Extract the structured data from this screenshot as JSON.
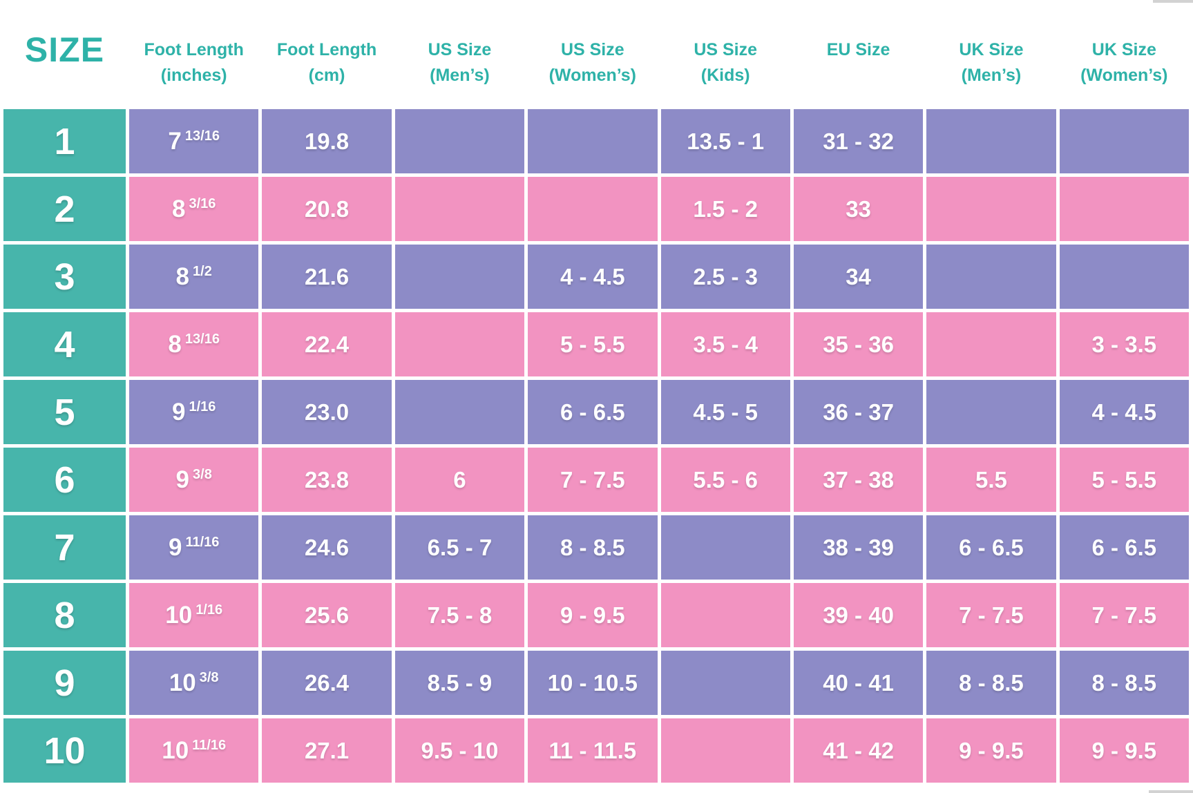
{
  "colors": {
    "background": "#ffffff",
    "teal": "#47b5ab",
    "purple": "#8d8bc7",
    "pink": "#f293c1",
    "header_text": "#2eb2a8",
    "cell_text": "#ffffff",
    "scrollbar_gray": "#d2d2d2"
  },
  "table": {
    "headers": [
      {
        "line1": "SIZE",
        "line2": ""
      },
      {
        "line1": "Foot Length",
        "line2": "(inches)"
      },
      {
        "line1": "Foot Length",
        "line2": "(cm)"
      },
      {
        "line1": "US Size",
        "line2": "(Men’s)"
      },
      {
        "line1": "US Size",
        "line2": "(Women’s)"
      },
      {
        "line1": "US Size",
        "line2": "(Kids)"
      },
      {
        "line1": "EU Size",
        "line2": ""
      },
      {
        "line1": "UK Size",
        "line2": "(Men’s)"
      },
      {
        "line1": "UK Size",
        "line2": "(Women’s)"
      }
    ]
  },
  "chart_data": {
    "type": "table",
    "columns": [
      "SIZE",
      "Foot Length (inches)",
      "Foot Length (cm)",
      "US Size (Men’s)",
      "US Size (Women’s)",
      "US Size (Kids)",
      "EU Size",
      "UK Size (Men’s)",
      "UK Size (Women’s)"
    ],
    "rows": [
      [
        "1",
        "7 13/16",
        "19.8",
        "",
        "",
        "13.5 - 1",
        "31 - 32",
        "",
        ""
      ],
      [
        "2",
        "8 3/16",
        "20.8",
        "",
        "",
        "1.5 - 2",
        "33",
        "",
        ""
      ],
      [
        "3",
        "8 1/2",
        "21.6",
        "",
        "4 - 4.5",
        "2.5 - 3",
        "34",
        "",
        ""
      ],
      [
        "4",
        "8 13/16",
        "22.4",
        "",
        "5 - 5.5",
        "3.5 - 4",
        "35 - 36",
        "",
        "3 - 3.5"
      ],
      [
        "5",
        "9 1/16",
        "23.0",
        "",
        "6 - 6.5",
        "4.5 - 5",
        "36 - 37",
        "",
        "4 - 4.5"
      ],
      [
        "6",
        "9 3/8",
        "23.8",
        "6",
        "7 - 7.5",
        "5.5 - 6",
        "37 - 38",
        "5.5",
        "5 - 5.5"
      ],
      [
        "7",
        "9 11/16",
        "24.6",
        "6.5 - 7",
        "8 - 8.5",
        "",
        "38 - 39",
        "6 - 6.5",
        "6 - 6.5"
      ],
      [
        "8",
        "10 1/16",
        "25.6",
        "7.5 - 8",
        "9 - 9.5",
        "",
        "39 - 40",
        "7 - 7.5",
        "7 - 7.5"
      ],
      [
        "9",
        "10 3/8",
        "26.4",
        "8.5 - 9",
        "10 - 10.5",
        "",
        "40 - 41",
        "8 - 8.5",
        "8 - 8.5"
      ],
      [
        "10",
        "10 11/16",
        "27.1",
        "9.5 - 10",
        "11 - 11.5",
        "",
        "41 - 42",
        "9 - 9.5",
        "9 - 9.5"
      ]
    ],
    "layout_hints": {
      "row_banding": "rows alternate purple (odd) and pink (even)",
      "first_column_style": "teal cells with large white numerals",
      "grid": "white gaps between all cells, white header area"
    }
  }
}
